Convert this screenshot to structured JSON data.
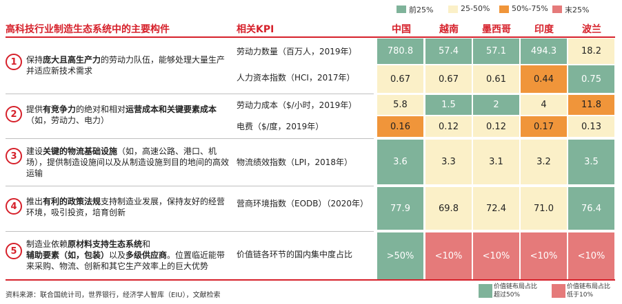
{
  "legend": [
    {
      "label": "前25%",
      "color": "#7fb39a"
    },
    {
      "label": "25-50%",
      "color": "#fbf0c8"
    },
    {
      "label": "50%-75%",
      "color": "#f0953a"
    },
    {
      "label": "末25%",
      "color": "#e57a7a"
    }
  ],
  "header": {
    "left_title": "高科技行业制造生态系统中的主要构件",
    "kpi_title": "相关KPI",
    "countries": [
      "中国",
      "越南",
      "墨西哥",
      "印度",
      "波兰"
    ]
  },
  "features": [
    {
      "num": "1",
      "parts": [
        {
          "t": "保持",
          "b": false
        },
        {
          "t": "庞大且高生产力",
          "b": true
        },
        {
          "t": "的劳动力队伍，能够处理大量生产并适应新技术需求",
          "b": false
        }
      ]
    },
    {
      "num": "2",
      "parts": [
        {
          "t": "提供",
          "b": false
        },
        {
          "t": "有竞争力",
          "b": true
        },
        {
          "t": "的绝对和相对",
          "b": false
        },
        {
          "t": "运营成本和关键要素成本",
          "b": true
        },
        {
          "t": "（如，劳动力、电力）",
          "b": false
        }
      ]
    },
    {
      "num": "3",
      "parts": [
        {
          "t": "建设",
          "b": false
        },
        {
          "t": "关键的物流基础设施",
          "b": true
        },
        {
          "t": "（如，高速公路、港口、机场），提供制造设施间以及从制造设施到目的地间的高效运输",
          "b": false
        }
      ]
    },
    {
      "num": "4",
      "parts": [
        {
          "t": "推出",
          "b": false
        },
        {
          "t": "有利的政策法规",
          "b": true
        },
        {
          "t": "支持制造业发展，保持友好的经营环境，吸引投资，培育创新",
          "b": false
        }
      ]
    },
    {
      "num": "5",
      "parts": [
        {
          "t": "制造业依赖",
          "b": false
        },
        {
          "t": "原材料支持生态系统",
          "b": true
        },
        {
          "t": "和",
          "b": false
        },
        {
          "t": "辅助要素（如，包装）",
          "b": true
        },
        {
          "t": "以及",
          "b": false
        },
        {
          "t": "多级供应商",
          "b": true
        },
        {
          "t": "。位置临近能带来采购、物流、创新和其它生产效率上的巨大优势",
          "b": false
        }
      ]
    }
  ],
  "chart_data": {
    "type": "table",
    "rows": [
      {
        "kpi": "劳动力数量（百万人，2019年）",
        "values": [
          "780.8",
          "57.4",
          "57.1",
          "494.3",
          "18.2"
        ],
        "ranks": [
          "top",
          "top",
          "top",
          "top",
          "second"
        ]
      },
      {
        "kpi": "人力资本指数（HCI，2017年）",
        "values": [
          "0.67",
          "0.67",
          "0.61",
          "0.44",
          "0.75"
        ],
        "ranks": [
          "second",
          "second",
          "second",
          "third",
          "top"
        ]
      },
      {
        "kpi": "劳动力成本（$/小时，2019年）",
        "values": [
          "5.8",
          "1.5",
          "2",
          "4",
          "11.8"
        ],
        "ranks": [
          "second",
          "top",
          "top",
          "second",
          "third"
        ]
      },
      {
        "kpi": "电费（$/度，2019年）",
        "values": [
          "0.16",
          "0.12",
          "0.12",
          "0.17",
          "0.13"
        ],
        "ranks": [
          "third",
          "second",
          "second",
          "third",
          "second"
        ]
      },
      {
        "kpi": "物流绩效指数（LPI，2018年）",
        "values": [
          "3.6",
          "3.3",
          "3.1",
          "3.2",
          "3.5"
        ],
        "ranks": [
          "top",
          "second",
          "second",
          "second",
          "top"
        ]
      },
      {
        "kpi": "营商环境指数（EODB）（2020年）",
        "values": [
          "77.9",
          "69.8",
          "72.4",
          "71.0",
          "76.4"
        ],
        "ranks": [
          "top",
          "second",
          "second",
          "second",
          "top"
        ]
      },
      {
        "kpi": "价值链各环节的国内集中度占比",
        "values": [
          ">50%",
          "<10%",
          "<10%",
          "<10%",
          "<10%"
        ],
        "ranks": [
          "top",
          "bottom",
          "bottom",
          "bottom",
          "bottom"
        ]
      }
    ]
  },
  "rank_colors": {
    "top": "#7fb39a",
    "second": "#fbf0c8",
    "third": "#f0953a",
    "bottom": "#e57a7a"
  },
  "bottom_legend": [
    {
      "label": "价值链布局占比超过50%",
      "color": "#7fb39a"
    },
    {
      "label": "价值链布局占比低于10%",
      "color": "#e57a7a"
    }
  ],
  "source": "资料来源：联合国统计司，世界银行，经济学人智库（EIU），文献检索"
}
